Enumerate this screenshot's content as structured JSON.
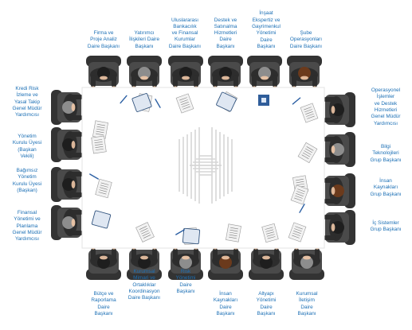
{
  "top_seats": [
    {
      "lines": [
        "Firma ve",
        "Proje Analiz",
        "Daire Başkanı"
      ]
    },
    {
      "lines": [
        "Yatırımcı",
        "İlişkileri Daire",
        "Başkanı"
      ]
    },
    {
      "lines": [
        "Uluslararası",
        "Bankacılık",
        "ve Finansal",
        "Kurumlar",
        "Daire Başkanı"
      ]
    },
    {
      "lines": [
        "Destek ve",
        "Satınalma",
        "Hizmetleri",
        "Daire",
        "Başkanı"
      ]
    },
    {
      "lines": [
        "İnşaat",
        "Ekspertiz ve",
        "Gayrimenkul",
        "Yönetimi",
        "Daire",
        "Başkanı"
      ]
    },
    {
      "lines": [
        "Şube",
        "Operasyonları",
        "Daire Başkanı"
      ]
    }
  ],
  "left_seats": [
    {
      "lines": [
        "Kredi Risk",
        "İzleme ve",
        "Yasal Takip",
        "Genel Müdür",
        "Yardımcısı"
      ]
    },
    {
      "lines": [
        "Yönetim",
        "Kurulu Üyesi",
        "(Başkan",
        "Vekili)"
      ]
    },
    {
      "lines": [
        "Bağımsız",
        "Yönetim",
        "Kurulu Üyesi",
        "(Başkan)"
      ]
    },
    {
      "lines": [
        "Finansal",
        "Yönetimi ve",
        "Planlama",
        "Genel Müdür",
        "Yardımcısı"
      ]
    }
  ],
  "right_seats": [
    {
      "lines": [
        "Operasyonel",
        "İşlemler",
        "ve Destek",
        "Hizmetleri",
        "Genel Müdür",
        "Yardımcısı"
      ]
    },
    {
      "lines": [
        "Bilgi",
        "Teknolojileri",
        "Grup Başkanı"
      ]
    },
    {
      "lines": [
        "İnsan",
        "Kaynakları",
        "Grup Başkanı"
      ]
    },
    {
      "lines": [
        "İç Sistemler",
        "Grup Başkanı"
      ]
    }
  ],
  "bottom_seats": [
    {
      "lines": [
        "Bütçe ve",
        "Raporlama",
        "Daire",
        "Başkanı"
      ]
    },
    {
      "lines": [
        "Kurumsal",
        "Mimari ve",
        "Ortaklıklar",
        "Koordinasyon",
        "Daire Başkanı"
      ]
    },
    {
      "lines": [
        "Risk",
        "Yönetimi",
        "Daire",
        "Başkanı"
      ]
    },
    {
      "lines": [
        "İnsan",
        "Kaynakları",
        "Daire",
        "Başkanı"
      ]
    },
    {
      "lines": [
        "Altyapı",
        "Yönetimi",
        "Daire",
        "Başkanı"
      ]
    },
    {
      "lines": [
        "Kurumsal",
        "İletişim",
        "Daire",
        "Başkanı"
      ]
    }
  ],
  "colors": {
    "label": "#1b6fb5",
    "table_border": "#e3e3e3",
    "chair": "#4a4a4a",
    "chair_dark": "#333333",
    "suit": "#2d2d2d",
    "hair_dark": "#1e1e1e",
    "hair_grey": "#8d8d8d",
    "hair_brown": "#6b3a1c",
    "skin": "#efc7a6",
    "logo": "#d6d6d6",
    "paper": "#f2f2f2",
    "folder": "#2f5d9a"
  },
  "icons": [
    "logo-icon",
    "person-icon",
    "document-icon",
    "pen-icon",
    "folder-icon"
  ]
}
